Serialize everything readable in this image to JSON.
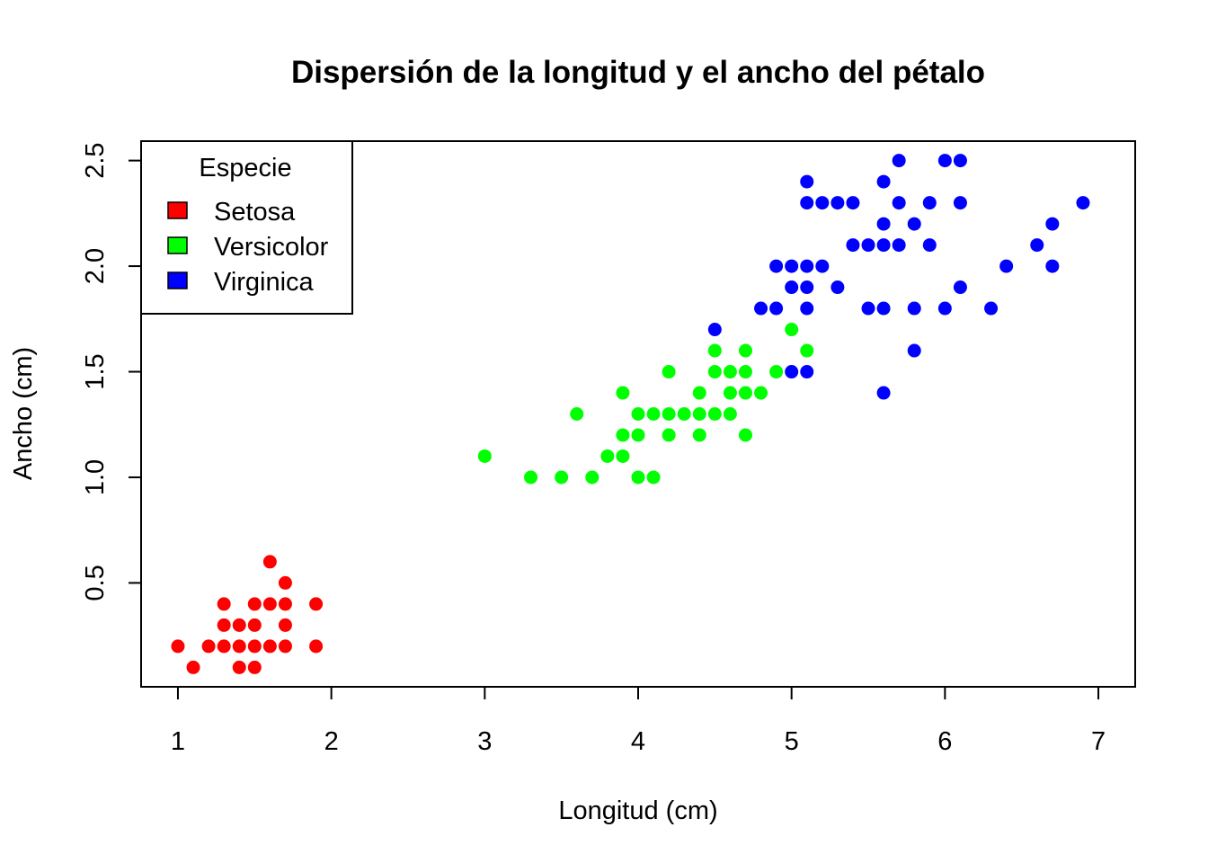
{
  "chart_data": {
    "type": "scatter",
    "title": "Dispersión de la longitud y el ancho del pétalo",
    "xlabel": "Longitud (cm)",
    "ylabel": "Ancho (cm)",
    "xlim": [
      0.76,
      7.24
    ],
    "ylim": [
      0.008,
      2.592
    ],
    "xticks": [
      1,
      2,
      3,
      4,
      5,
      6,
      7
    ],
    "yticks": [
      0.5,
      1.0,
      1.5,
      2.0,
      2.5
    ],
    "ytick_labels": [
      "0.5",
      "1.0",
      "1.5",
      "2.0",
      "2.5"
    ],
    "legend": {
      "title": "Especie",
      "position": "top-left"
    },
    "series": [
      {
        "name": "Setosa",
        "color": "#ff0000",
        "points": [
          [
            1.0,
            0.2
          ],
          [
            1.1,
            0.1
          ],
          [
            1.2,
            0.2
          ],
          [
            1.3,
            0.2
          ],
          [
            1.3,
            0.3
          ],
          [
            1.3,
            0.4
          ],
          [
            1.4,
            0.1
          ],
          [
            1.4,
            0.2
          ],
          [
            1.4,
            0.3
          ],
          [
            1.5,
            0.1
          ],
          [
            1.5,
            0.2
          ],
          [
            1.5,
            0.3
          ],
          [
            1.5,
            0.4
          ],
          [
            1.6,
            0.2
          ],
          [
            1.6,
            0.4
          ],
          [
            1.6,
            0.6
          ],
          [
            1.7,
            0.2
          ],
          [
            1.7,
            0.3
          ],
          [
            1.7,
            0.4
          ],
          [
            1.7,
            0.5
          ],
          [
            1.9,
            0.2
          ],
          [
            1.9,
            0.4
          ]
        ]
      },
      {
        "name": "Versicolor",
        "color": "#00ff00",
        "points": [
          [
            3.0,
            1.1
          ],
          [
            3.3,
            1.0
          ],
          [
            3.5,
            1.0
          ],
          [
            3.6,
            1.3
          ],
          [
            3.7,
            1.0
          ],
          [
            3.8,
            1.1
          ],
          [
            3.9,
            1.1
          ],
          [
            3.9,
            1.2
          ],
          [
            3.9,
            1.4
          ],
          [
            4.0,
            1.0
          ],
          [
            4.0,
            1.2
          ],
          [
            4.0,
            1.3
          ],
          [
            4.1,
            1.0
          ],
          [
            4.1,
            1.3
          ],
          [
            4.2,
            1.2
          ],
          [
            4.2,
            1.3
          ],
          [
            4.2,
            1.5
          ],
          [
            4.3,
            1.3
          ],
          [
            4.4,
            1.2
          ],
          [
            4.4,
            1.3
          ],
          [
            4.4,
            1.4
          ],
          [
            4.5,
            1.3
          ],
          [
            4.5,
            1.5
          ],
          [
            4.5,
            1.6
          ],
          [
            4.6,
            1.3
          ],
          [
            4.6,
            1.4
          ],
          [
            4.6,
            1.5
          ],
          [
            4.7,
            1.2
          ],
          [
            4.7,
            1.4
          ],
          [
            4.7,
            1.5
          ],
          [
            4.7,
            1.6
          ],
          [
            4.8,
            1.4
          ],
          [
            4.9,
            1.5
          ],
          [
            5.0,
            1.7
          ],
          [
            5.1,
            1.6
          ]
        ]
      },
      {
        "name": "Virginica",
        "color": "#0000ff",
        "points": [
          [
            4.5,
            1.7
          ],
          [
            4.8,
            1.8
          ],
          [
            4.9,
            1.8
          ],
          [
            4.9,
            2.0
          ],
          [
            5.0,
            1.5
          ],
          [
            5.0,
            1.9
          ],
          [
            5.0,
            2.0
          ],
          [
            5.1,
            1.5
          ],
          [
            5.1,
            1.8
          ],
          [
            5.1,
            1.9
          ],
          [
            5.1,
            2.0
          ],
          [
            5.1,
            2.3
          ],
          [
            5.1,
            2.4
          ],
          [
            5.2,
            2.0
          ],
          [
            5.2,
            2.3
          ],
          [
            5.3,
            1.9
          ],
          [
            5.3,
            2.3
          ],
          [
            5.4,
            2.1
          ],
          [
            5.4,
            2.3
          ],
          [
            5.5,
            1.8
          ],
          [
            5.5,
            2.1
          ],
          [
            5.6,
            1.4
          ],
          [
            5.6,
            1.8
          ],
          [
            5.6,
            2.1
          ],
          [
            5.6,
            2.2
          ],
          [
            5.6,
            2.4
          ],
          [
            5.7,
            2.1
          ],
          [
            5.7,
            2.3
          ],
          [
            5.7,
            2.5
          ],
          [
            5.8,
            1.6
          ],
          [
            5.8,
            1.8
          ],
          [
            5.8,
            2.2
          ],
          [
            5.9,
            2.1
          ],
          [
            5.9,
            2.3
          ],
          [
            6.0,
            1.8
          ],
          [
            6.0,
            2.5
          ],
          [
            6.1,
            1.9
          ],
          [
            6.1,
            2.3
          ],
          [
            6.1,
            2.5
          ],
          [
            6.3,
            1.8
          ],
          [
            6.4,
            2.0
          ],
          [
            6.6,
            2.1
          ],
          [
            6.7,
            2.0
          ],
          [
            6.7,
            2.2
          ],
          [
            6.9,
            2.3
          ]
        ]
      }
    ]
  }
}
